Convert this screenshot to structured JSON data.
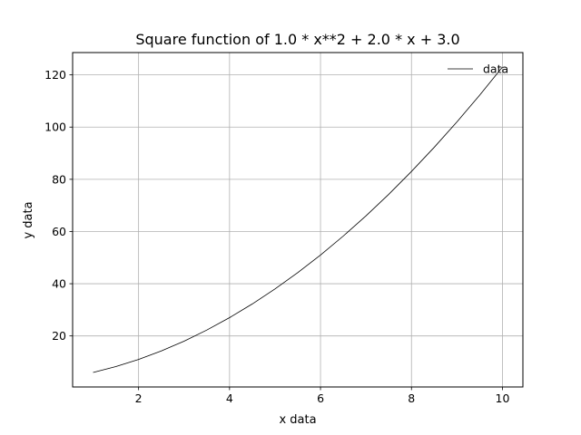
{
  "chart_data": {
    "type": "line",
    "title": "Square function of 1.0 * x**2 + 2.0 * x + 3.0",
    "xlabel": "x data",
    "ylabel": "y data",
    "xlim": [
      0.55,
      10.45
    ],
    "ylim": [
      0.45,
      128.55
    ],
    "xticks": [
      2,
      4,
      6,
      8,
      10
    ],
    "yticks": [
      20,
      40,
      60,
      80,
      100,
      120
    ],
    "grid": true,
    "legend_placement": "top-right",
    "series": [
      {
        "name": "data",
        "color": "#000000",
        "x": [
          1.0,
          1.5,
          2.0,
          2.5,
          3.0,
          3.5,
          4.0,
          4.5,
          5.0,
          5.5,
          6.0,
          6.5,
          7.0,
          7.5,
          8.0,
          8.5,
          9.0,
          9.5,
          10.0
        ],
        "y": [
          6.0,
          8.25,
          11.0,
          14.25,
          18.0,
          22.25,
          27.0,
          32.25,
          38.0,
          44.25,
          51.0,
          58.25,
          66.0,
          74.25,
          83.0,
          92.25,
          102.0,
          112.25,
          123.0
        ]
      }
    ]
  }
}
